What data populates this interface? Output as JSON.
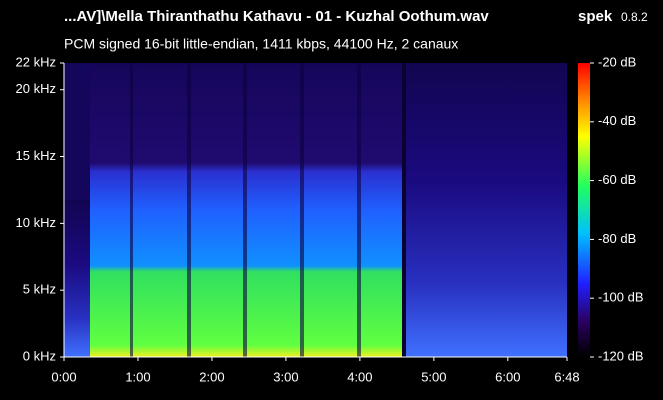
{
  "chart_data": {
    "type": "spectrogram",
    "title": "...AV]\\Mella Thiranthathu Kathavu - 01 - Kuzhal Oothum.wav",
    "app_name": "spek",
    "app_version": "0.8.2",
    "subtitle": "PCM signed 16-bit little-endian, 1411 kbps, 44100 Hz, 2 canaux",
    "xlim": [
      0,
      408
    ],
    "xticks": [
      {
        "value": 0,
        "label": "0:00"
      },
      {
        "value": 60,
        "label": "1:00"
      },
      {
        "value": 120,
        "label": "2:00"
      },
      {
        "value": 180,
        "label": "3:00"
      },
      {
        "value": 240,
        "label": "4:00"
      },
      {
        "value": 300,
        "label": "5:00"
      },
      {
        "value": 360,
        "label": "6:00"
      },
      {
        "value": 408,
        "label": "6:48"
      }
    ],
    "ylim": [
      0,
      22
    ],
    "yticks": [
      {
        "value": 0,
        "label": "0 kHz"
      },
      {
        "value": 5,
        "label": "5 kHz"
      },
      {
        "value": 10,
        "label": "10 kHz"
      },
      {
        "value": 15,
        "label": "15 kHz"
      },
      {
        "value": 20,
        "label": "20 kHz"
      },
      {
        "value": 22,
        "label": "22 kHz"
      }
    ],
    "zlim": [
      -120,
      -20
    ],
    "zticks": [
      {
        "value": -20,
        "label": "-20 dB"
      },
      {
        "value": -40,
        "label": "-40 dB"
      },
      {
        "value": -60,
        "label": "-60 dB"
      },
      {
        "value": -80,
        "label": "-80 dB"
      },
      {
        "value": -100,
        "label": "-100 dB"
      },
      {
        "value": -120,
        "label": "-120 dB"
      }
    ]
  }
}
